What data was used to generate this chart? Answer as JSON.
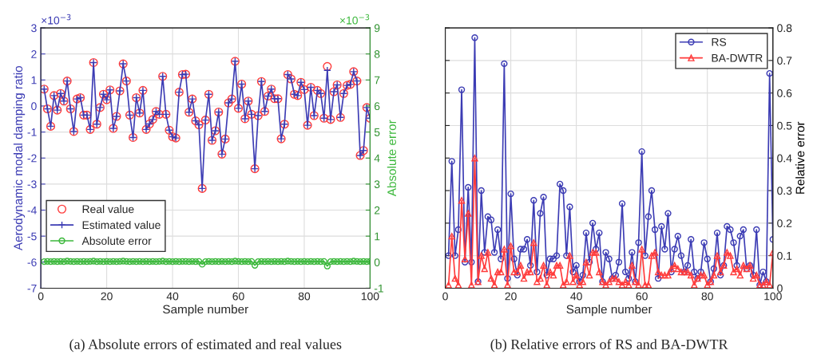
{
  "chart_data": [
    {
      "type": "line",
      "xlabel": "Sample number",
      "ylabel": "Aerodynamic modal damping ratio",
      "y2label": "Absolute error",
      "annotations": [
        "×10$^{−3}$",
        "×10$^{−3}$",
        "(a) Absolute errors of estimated and real values"
      ],
      "x": [
        1,
        2,
        3,
        4,
        5,
        6,
        7,
        8,
        9,
        10,
        11,
        12,
        13,
        14,
        15,
        16,
        17,
        18,
        19,
        20,
        21,
        22,
        23,
        24,
        25,
        26,
        27,
        28,
        29,
        30,
        31,
        32,
        33,
        34,
        35,
        36,
        37,
        38,
        39,
        40,
        41,
        42,
        43,
        44,
        45,
        46,
        47,
        48,
        49,
        50,
        51,
        52,
        53,
        54,
        55,
        56,
        57,
        58,
        59,
        60,
        61,
        62,
        63,
        64,
        65,
        66,
        67,
        68,
        69,
        70,
        71,
        72,
        73,
        74,
        75,
        76,
        77,
        78,
        79,
        80,
        81,
        82,
        83,
        84,
        85,
        86,
        87,
        88,
        89,
        90,
        91,
        92,
        93,
        94,
        95,
        96,
        97,
        98,
        99,
        100
      ],
      "xlim": [
        0,
        100
      ],
      "xticks": [
        0,
        20,
        40,
        60,
        80,
        100
      ],
      "ylim": [
        -7,
        3
      ],
      "yticks": [
        -7,
        -6,
        -5,
        -4,
        -3,
        -2,
        -1,
        0,
        1,
        2,
        3
      ],
      "y2lim": [
        -1,
        9
      ],
      "y2ticks": [
        -1,
        0,
        1,
        2,
        3,
        4,
        5,
        6,
        7,
        8,
        9
      ],
      "grid": true,
      "legend": "bottom left",
      "series": [
        {
          "name": "Real value",
          "type": "scatter",
          "marker": "circle",
          "color": "#ff3b3b",
          "values": [
            0.65,
            -0.11,
            -0.78,
            0.4,
            -0.16,
            0.48,
            0.19,
            0.96,
            -0.11,
            -0.98,
            0.27,
            0.32,
            -0.35,
            -0.35,
            -0.9,
            1.67,
            -0.7,
            -0.06,
            0.45,
            0.24,
            0.62,
            -0.86,
            -0.4,
            0.58,
            1.62,
            0.96,
            -0.35,
            -1.21,
            0.32,
            -0.27,
            0.6,
            -0.9,
            -0.69,
            -0.52,
            -0.21,
            -0.32,
            1.14,
            -0.32,
            -0.93,
            -1.18,
            -1.23,
            0.53,
            1.21,
            1.22,
            -0.24,
            0.27,
            -0.57,
            -0.72,
            -3.17,
            -0.54,
            0.45,
            -1.32,
            -0.95,
            -0.23,
            -1.85,
            -1.27,
            0.12,
            0.27,
            1.72,
            -0.09,
            0.84,
            -0.49,
            0.19,
            -0.32,
            -2.41,
            -0.37,
            0.94,
            -0.21,
            0.38,
            0.65,
            0.28,
            0.28,
            -1.26,
            -0.7,
            1.21,
            1.04,
            0.45,
            0.4,
            0.91,
            0.63,
            -0.74,
            0.72,
            -0.37,
            0.6,
            0.48,
            -0.47,
            1.52,
            -0.52,
            0.55,
            0.81,
            -0.44,
            0.48,
            0.79,
            0.83,
            1.32,
            0.96,
            -1.9,
            -1.71,
            -0.06,
            -0.47
          ]
        },
        {
          "name": "Estimated value",
          "type": "line",
          "marker": "cross",
          "line_style": "solid",
          "color": "#3c3cb4",
          "values": [
            0.65,
            -0.11,
            -0.78,
            0.4,
            -0.16,
            0.48,
            0.19,
            0.96,
            -0.11,
            -0.98,
            0.27,
            0.32,
            -0.35,
            -0.35,
            -0.9,
            1.67,
            -0.7,
            -0.06,
            0.45,
            0.24,
            0.62,
            -0.86,
            -0.4,
            0.58,
            1.62,
            0.96,
            -0.35,
            -1.21,
            0.32,
            -0.27,
            0.6,
            -0.9,
            -0.69,
            -0.52,
            -0.21,
            -0.32,
            1.14,
            -0.32,
            -0.93,
            -1.18,
            -1.23,
            0.53,
            1.21,
            1.22,
            -0.24,
            0.27,
            -0.57,
            -0.72,
            -3.17,
            -0.54,
            0.45,
            -1.32,
            -0.95,
            -0.23,
            -1.85,
            -1.27,
            0.12,
            0.27,
            1.72,
            -0.09,
            0.84,
            -0.49,
            0.19,
            -0.32,
            -2.41,
            -0.37,
            0.94,
            -0.21,
            0.38,
            0.65,
            0.28,
            0.28,
            -1.26,
            -0.7,
            1.21,
            1.04,
            0.45,
            0.4,
            0.91,
            0.63,
            -0.74,
            0.72,
            -0.37,
            0.6,
            0.48,
            -0.47,
            1.37,
            -0.52,
            0.55,
            0.81,
            -0.44,
            0.48,
            0.79,
            0.83,
            1.32,
            0.96,
            -1.9,
            -1.71,
            -0.06,
            -0.47
          ]
        },
        {
          "name": "Absolute error",
          "type": "line",
          "axis": "y2",
          "marker": "circle",
          "line_style": "solid",
          "color": "#3cb83c",
          "values": [
            0.02,
            0.03,
            0.02,
            0.03,
            0.02,
            0.03,
            0.02,
            0.04,
            0.03,
            0.02,
            0.03,
            0.02,
            0.03,
            0.02,
            0.03,
            0.04,
            0.02,
            0.03,
            0.02,
            0.03,
            0.02,
            0.03,
            0.02,
            0.03,
            0.04,
            0.03,
            0.02,
            0.03,
            0.02,
            0.03,
            0.02,
            0.03,
            0.02,
            0.03,
            0.02,
            0.03,
            0.04,
            0.02,
            0.03,
            0.02,
            0.03,
            0.02,
            0.03,
            0.03,
            0.02,
            0.03,
            0.02,
            0.03,
            -0.08,
            0.02,
            0.03,
            0.02,
            0.03,
            0.02,
            0.03,
            0.02,
            0.03,
            0.02,
            0.04,
            0.03,
            0.02,
            0.03,
            0.02,
            0.03,
            -0.12,
            0.02,
            0.03,
            0.02,
            0.03,
            0.02,
            0.03,
            0.02,
            0.03,
            0.02,
            0.04,
            0.03,
            0.02,
            0.03,
            0.02,
            0.03,
            0.02,
            0.03,
            0.02,
            0.03,
            0.02,
            0.03,
            -0.15,
            0.02,
            0.03,
            0.02,
            0.03,
            0.02,
            0.03,
            0.02,
            0.04,
            0.03,
            0.02,
            0.03,
            0.02,
            0.03
          ]
        }
      ]
    },
    {
      "type": "line",
      "xlabel": "Sample number",
      "y2label": "Relative error",
      "annotations": [
        "(b) Relative errors of RS and BA-DWTR"
      ],
      "x": [
        1,
        2,
        3,
        4,
        5,
        6,
        7,
        8,
        9,
        10,
        11,
        12,
        13,
        14,
        15,
        16,
        17,
        18,
        19,
        20,
        21,
        22,
        23,
        24,
        25,
        26,
        27,
        28,
        29,
        30,
        31,
        32,
        33,
        34,
        35,
        36,
        37,
        38,
        39,
        40,
        41,
        42,
        43,
        44,
        45,
        46,
        47,
        48,
        49,
        50,
        51,
        52,
        53,
        54,
        55,
        56,
        57,
        58,
        59,
        60,
        61,
        62,
        63,
        64,
        65,
        66,
        67,
        68,
        69,
        70,
        71,
        72,
        73,
        74,
        75,
        76,
        77,
        78,
        79,
        80,
        81,
        82,
        83,
        84,
        85,
        86,
        87,
        88,
        89,
        90,
        91,
        92,
        93,
        94,
        95,
        96,
        97,
        98,
        99,
        100
      ],
      "xlim": [
        0,
        100
      ],
      "xticks": [
        0,
        20,
        40,
        60,
        80,
        100
      ],
      "y2lim": [
        0,
        0.8
      ],
      "y2ticks": [
        0,
        0.1,
        0.2,
        0.3,
        0.4,
        0.5,
        0.6,
        0.7,
        0.8
      ],
      "grid": true,
      "legend": "top right",
      "series": [
        {
          "name": "RS",
          "type": "line",
          "axis": "y2",
          "marker": "circle",
          "line_style": "solid",
          "color": "#3c3cb4",
          "values": [
            0.1,
            0.39,
            0.1,
            0.18,
            0.61,
            0.08,
            0.31,
            0.08,
            0.77,
            0.02,
            0.3,
            0.11,
            0.22,
            0.21,
            0.11,
            0.18,
            0.09,
            0.69,
            0.03,
            0.29,
            0.09,
            0.04,
            0.12,
            0.12,
            0.15,
            0.07,
            0.27,
            0.05,
            0.23,
            0.28,
            0.04,
            0.09,
            0.09,
            0.1,
            0.32,
            0.3,
            0.1,
            0.25,
            0.05,
            0.07,
            0.02,
            0.04,
            0.17,
            0.08,
            0.2,
            0.12,
            0.17,
            0.02,
            0.11,
            0.09,
            0.03,
            0.04,
            0.08,
            0.26,
            0.05,
            0.03,
            0.11,
            0.02,
            0.14,
            0.42,
            0.1,
            0.22,
            0.3,
            0.18,
            0.03,
            0.19,
            0.12,
            0.23,
            0.05,
            0.12,
            0.16,
            0.1,
            0.05,
            0.07,
            0.15,
            0.05,
            0.03,
            0.05,
            0.14,
            0.09,
            0.02,
            0.06,
            0.17,
            0.04,
            0.07,
            0.19,
            0.18,
            0.14,
            0.07,
            0.16,
            0.18,
            0.06,
            0.07,
            0.04,
            0.18,
            0.01,
            0.05,
            0.02,
            0.66,
            0.15
          ]
        },
        {
          "name": "BA-DWTR",
          "type": "line",
          "axis": "y2",
          "marker": "triangle",
          "line_style": "solid",
          "color": "#ff3b3b",
          "values": [
            0.01,
            0.16,
            0.03,
            0.01,
            0.27,
            0.09,
            0.23,
            0.01,
            0.4,
            0.02,
            0.1,
            0.06,
            0.11,
            0.03,
            0.01,
            0.05,
            0.05,
            0.12,
            0.01,
            0.13,
            0.05,
            0.05,
            0.07,
            0.03,
            0.05,
            0.05,
            0.14,
            0.02,
            0.03,
            0.07,
            0.01,
            0.05,
            0.04,
            0.07,
            0.07,
            0.01,
            0.02,
            0.1,
            0.02,
            0.04,
            0.01,
            0.02,
            0.08,
            0.04,
            0.11,
            0.11,
            0.05,
            0.02,
            0.01,
            0.02,
            0.03,
            0.03,
            0.02,
            0.01,
            0.02,
            0.01,
            0.07,
            0.02,
            0.01,
            0.12,
            0.01,
            0.01,
            0.1,
            0.11,
            0.05,
            0.04,
            0.04,
            0.04,
            0.06,
            0.07,
            0.06,
            0.05,
            0.05,
            0.05,
            0.04,
            0.01,
            0.03,
            0.04,
            0.04,
            0.01,
            0.02,
            0.04,
            0.1,
            0.05,
            0.07,
            0.11,
            0.1,
            0.05,
            0.06,
            0.04,
            0.07,
            0.06,
            0.07,
            0.03,
            0.04,
            0.01,
            0.01,
            0.02,
            0.01,
            0.11
          ]
        }
      ]
    }
  ]
}
